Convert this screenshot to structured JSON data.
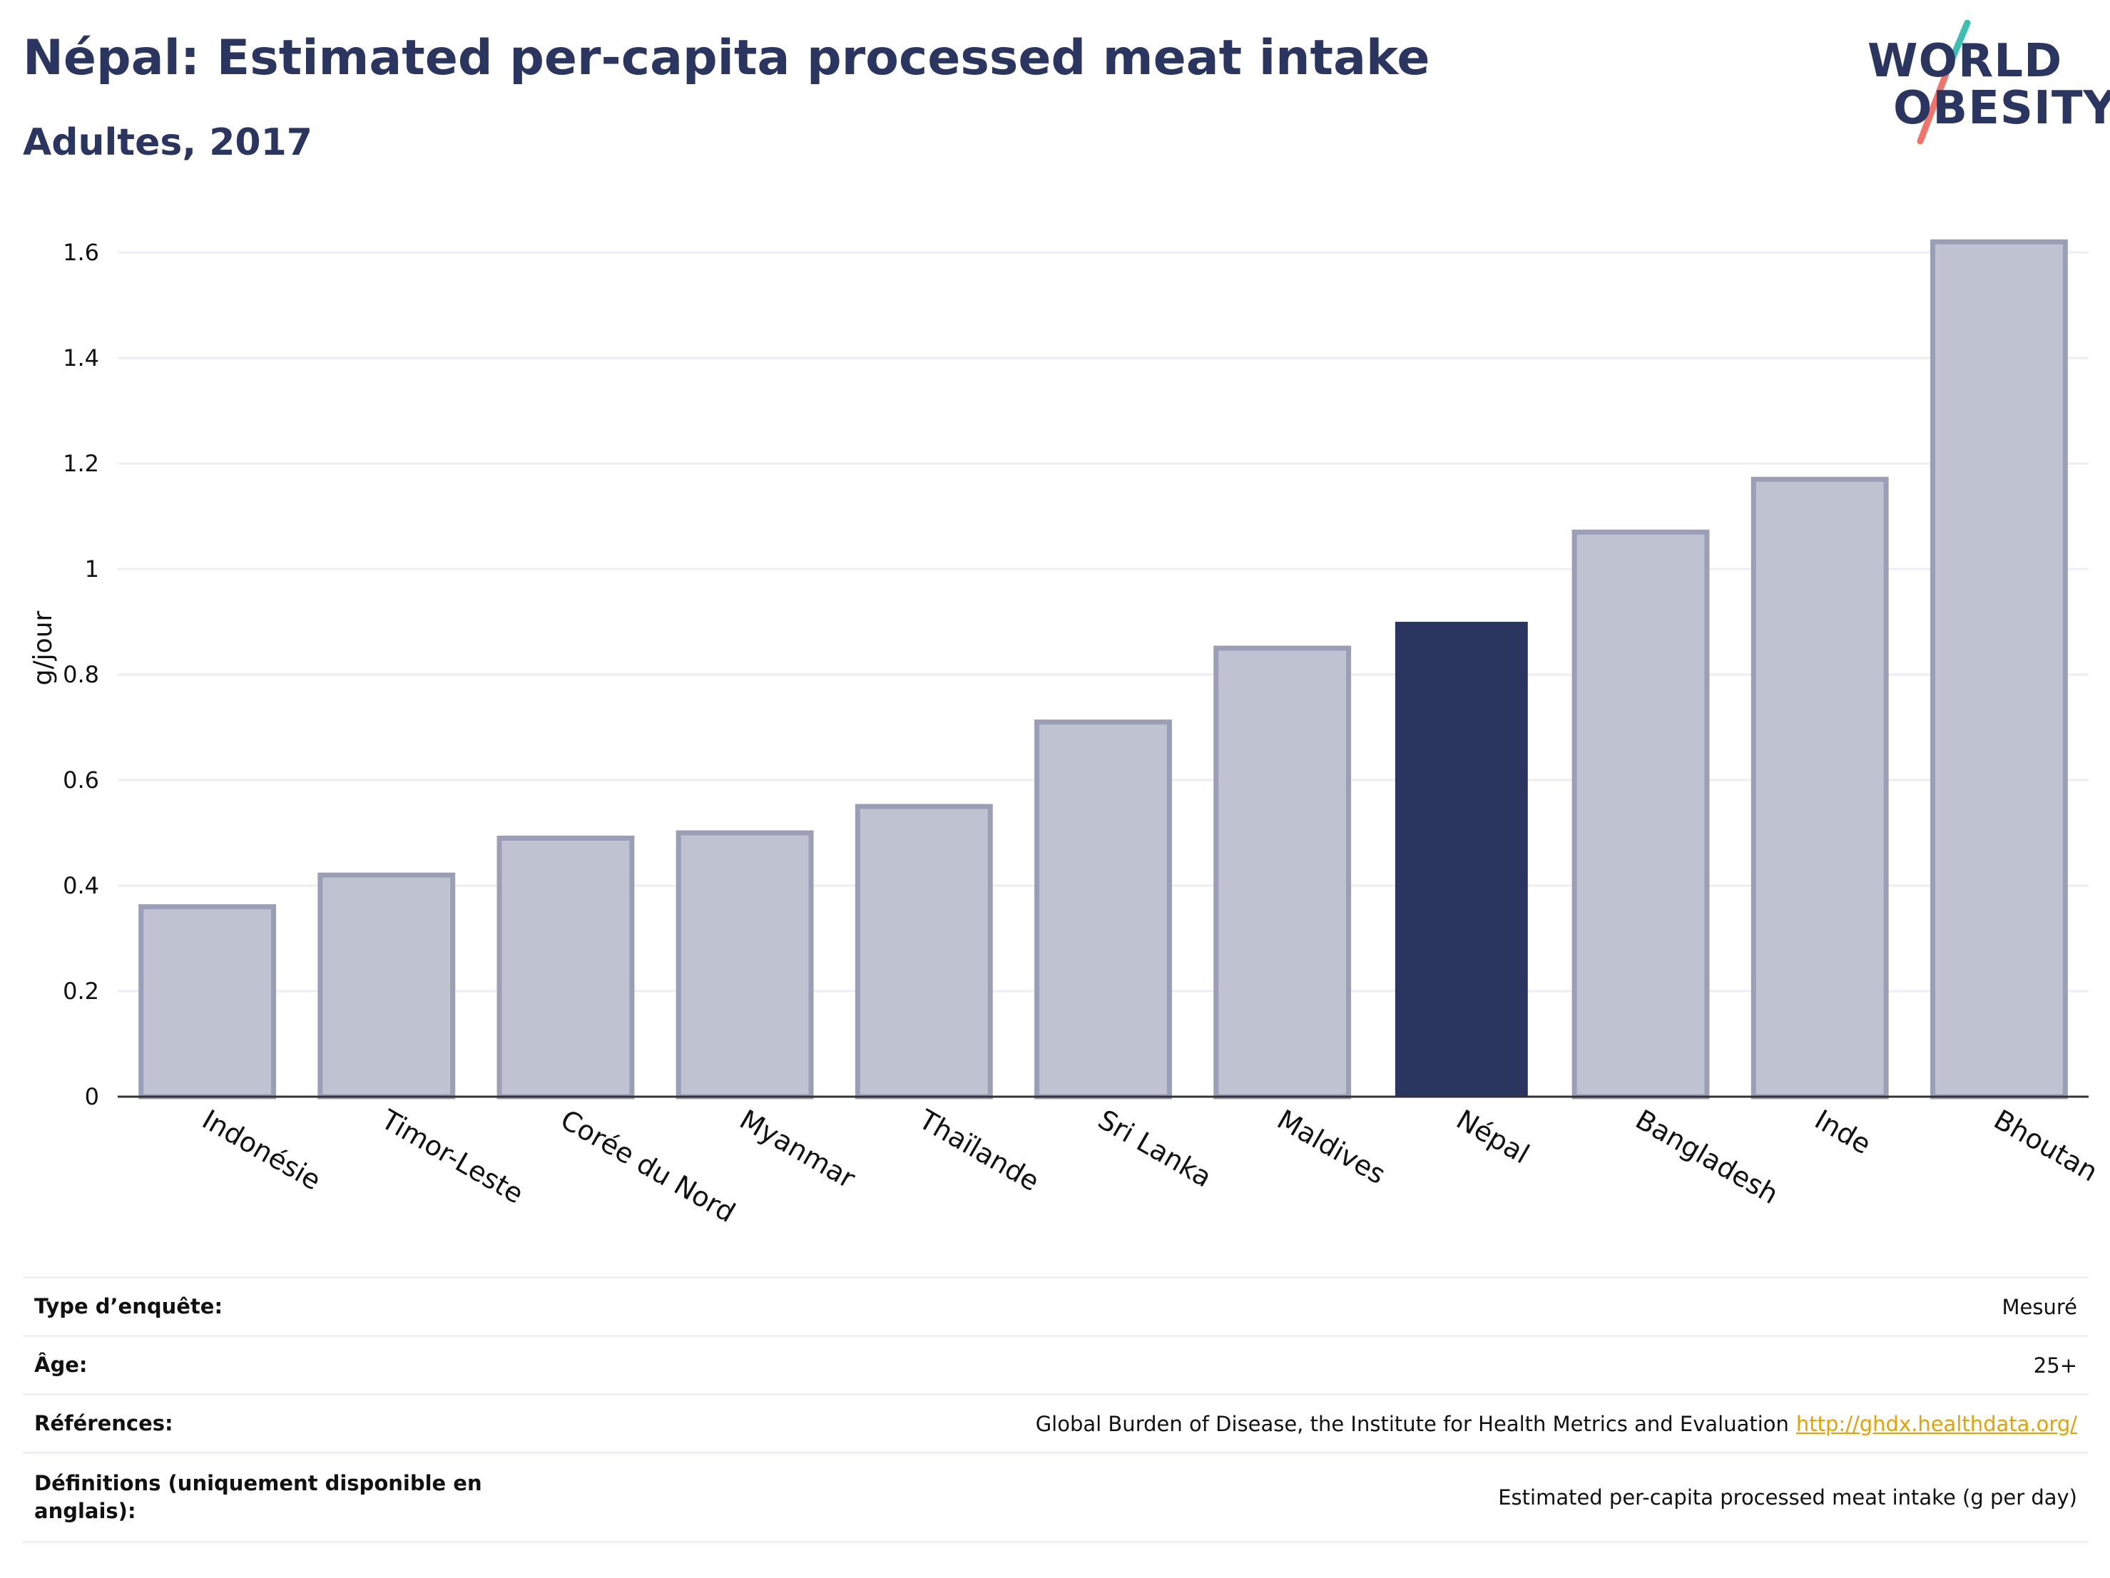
{
  "header": {
    "title": "Népal: Estimated per-capita processed meat intake",
    "subtitle": "Adultes, 2017"
  },
  "logo": {
    "line1": "WORLD",
    "line2": "OBESITY",
    "accent_teal": "#3bbfb0",
    "accent_coral": "#f0746a"
  },
  "chart_data": {
    "type": "bar",
    "categories": [
      "Indonésie",
      "Timor-Leste",
      "Corée du Nord",
      "Myanmar",
      "Thaïlande",
      "Sri Lanka",
      "Maldives",
      "Népal",
      "Bangladesh",
      "Inde",
      "Bhoutan"
    ],
    "values": [
      0.36,
      0.42,
      0.49,
      0.5,
      0.55,
      0.71,
      0.85,
      0.9,
      1.07,
      1.17,
      1.62
    ],
    "highlight": "Népal",
    "ylabel": "g/jour",
    "ylim": [
      0,
      1.7
    ],
    "yticks": [
      0,
      0.2,
      0.4,
      0.6,
      0.8,
      1,
      1.2,
      1.4,
      1.6
    ],
    "ytick_labels": [
      "0",
      "0.2",
      "0.4",
      "0.6",
      "0.8",
      "1",
      "1.2",
      "1.4",
      "1.6"
    ],
    "grid": true,
    "colors": {
      "bar_fill": "#bfc2d0",
      "bar_stroke": "#9a9fb6",
      "highlight_fill": "#2a3560"
    }
  },
  "info_table": {
    "rows": [
      {
        "label": "Type d’enquête:",
        "value": "Mesuré"
      },
      {
        "label": "Âge:",
        "value": "25+"
      },
      {
        "label": "Références:",
        "value": "Global Burden of Disease, the Institute for Health Metrics and Evaluation",
        "link": "http://ghdx.healthdata.org/"
      },
      {
        "label": "Définitions (uniquement disponible en anglais):",
        "value": "Estimated per-capita processed meat intake (g per day)"
      }
    ]
  }
}
